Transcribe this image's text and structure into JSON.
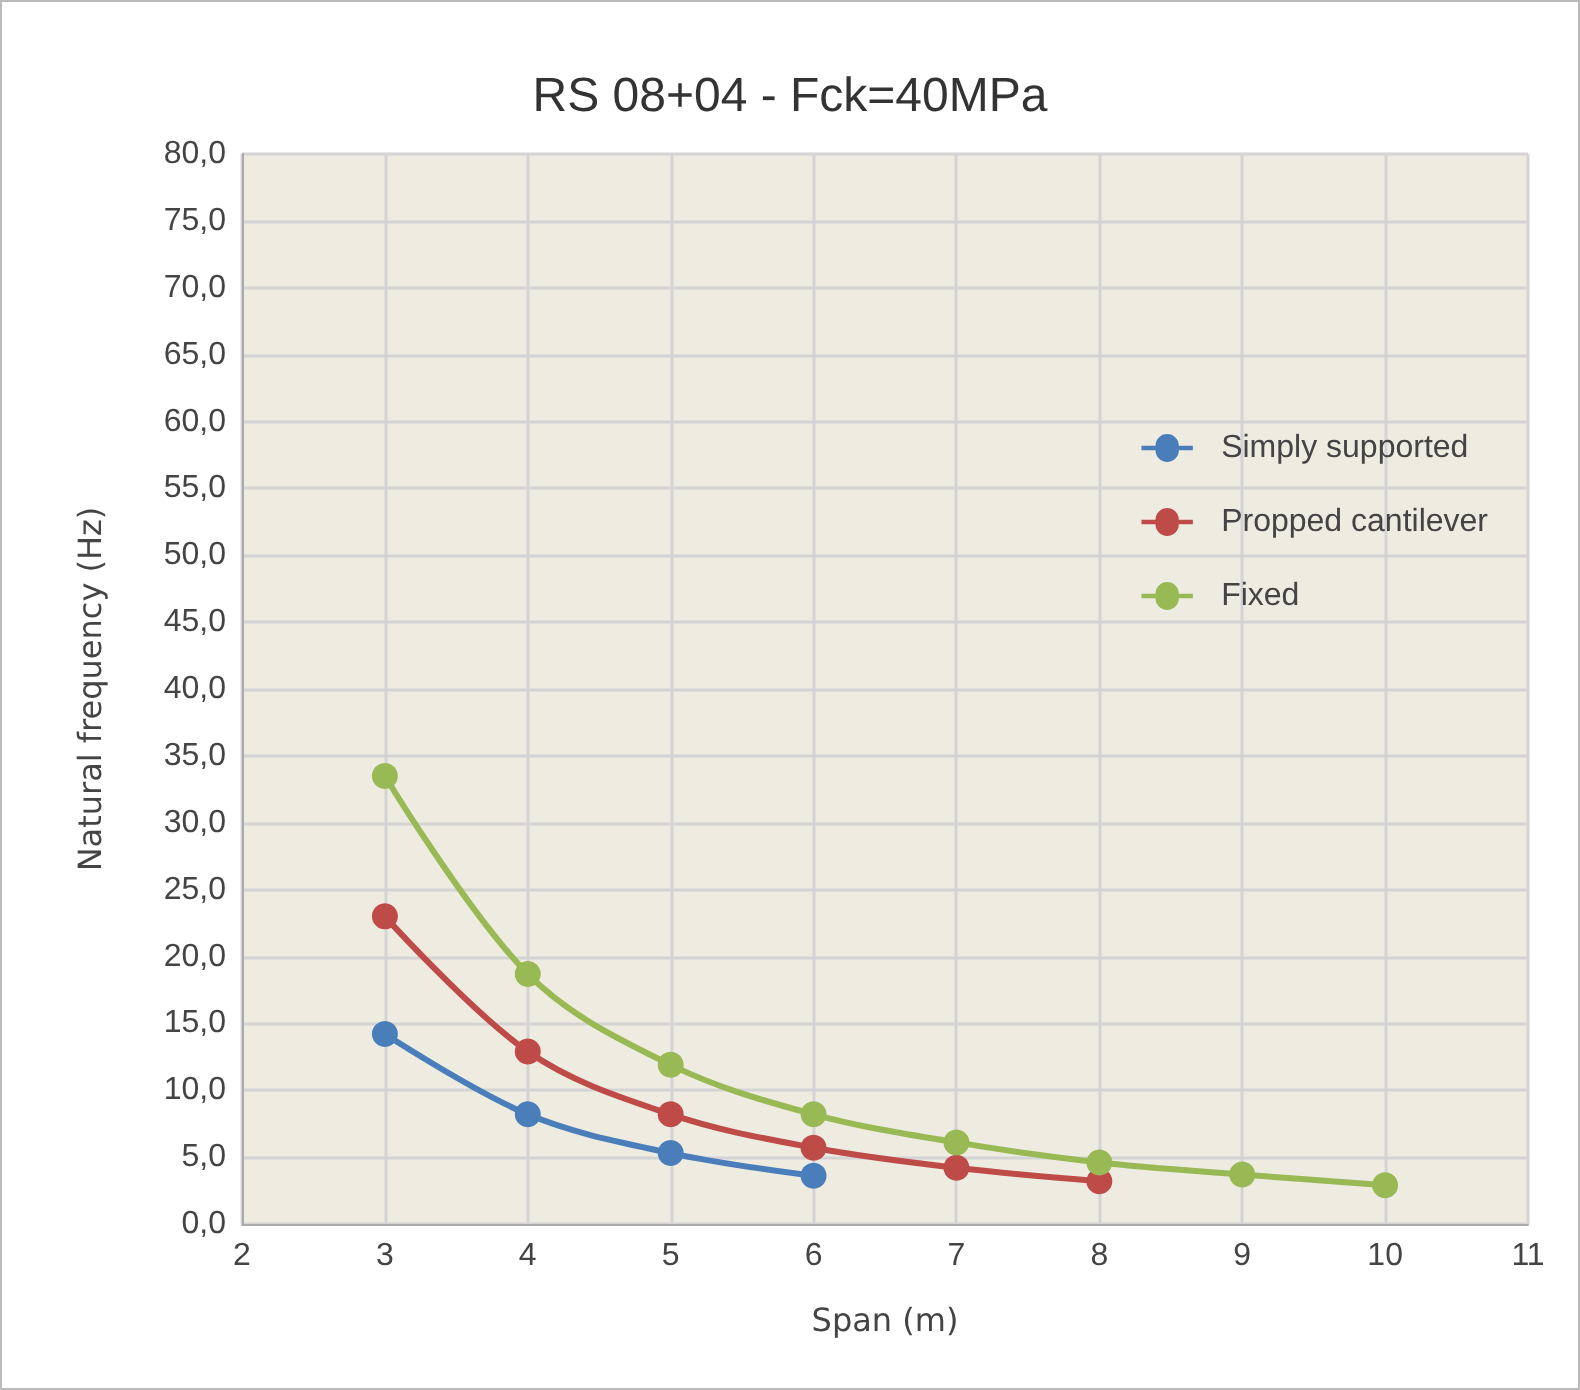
{
  "chart_data": {
    "type": "line",
    "title": "RS 08+04 - Fck=40MPa",
    "xlabel": "Span (m)",
    "ylabel": "Natural frequency (Hz)",
    "xlim": [
      2,
      11
    ],
    "xticks": [
      2,
      3,
      4,
      5,
      6,
      7,
      8,
      9,
      10,
      11
    ],
    "ylim": [
      0,
      80
    ],
    "yticks": [
      {
        "value": 0,
        "label": "0,0"
      },
      {
        "value": 5,
        "label": "5,0"
      },
      {
        "value": 10,
        "label": "10,0"
      },
      {
        "value": 15,
        "label": "15,0"
      },
      {
        "value": 20,
        "label": "20,0"
      },
      {
        "value": 25,
        "label": "25,0"
      },
      {
        "value": 30,
        "label": "30,0"
      },
      {
        "value": 35,
        "label": "35,0"
      },
      {
        "value": 40,
        "label": "40,0"
      },
      {
        "value": 45,
        "label": "45,0"
      },
      {
        "value": 50,
        "label": "50,0"
      },
      {
        "value": 55,
        "label": "55,0"
      },
      {
        "value": 60,
        "label": "60,0"
      },
      {
        "value": 65,
        "label": "65,0"
      },
      {
        "value": 70,
        "label": "70,0"
      },
      {
        "value": 75,
        "label": "75,0"
      },
      {
        "value": 80,
        "label": "80,0"
      }
    ],
    "grid": true,
    "legend": "right",
    "marker": "circle",
    "line_style": "solid",
    "series": [
      {
        "name": "Simply supported",
        "color": "#4a7ebb",
        "x": [
          3,
          4,
          5,
          6
        ],
        "values": [
          14.2,
          8.2,
          5.3,
          3.6
        ]
      },
      {
        "name": "Propped cantilever",
        "color": "#be4b48",
        "x": [
          3,
          4,
          5,
          6,
          7,
          8
        ],
        "values": [
          23.0,
          12.9,
          8.2,
          5.7,
          4.2,
          3.2
        ]
      },
      {
        "name": "Fixed",
        "color": "#98b954",
        "x": [
          3,
          4,
          5,
          6,
          7,
          8,
          9,
          10
        ],
        "values": [
          33.5,
          18.7,
          11.9,
          8.2,
          6.1,
          4.6,
          3.7,
          2.9
        ]
      }
    ]
  }
}
